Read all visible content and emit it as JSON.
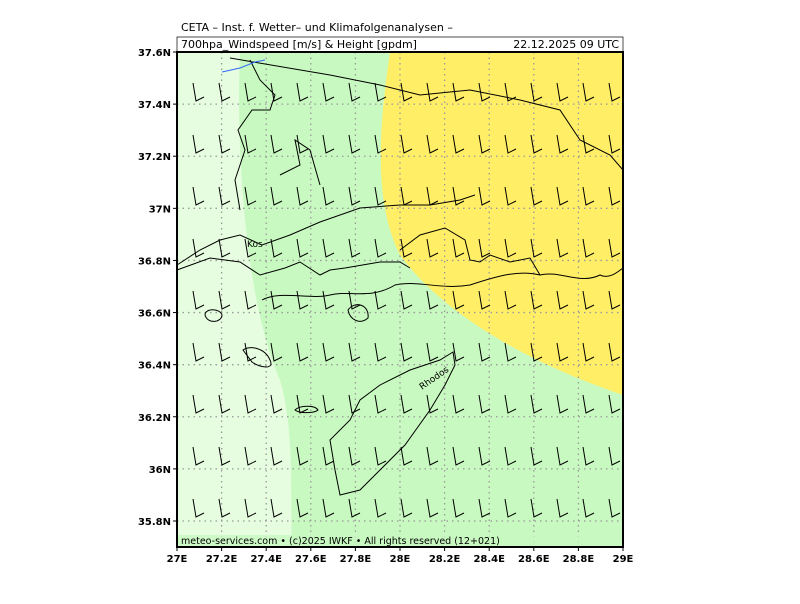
{
  "header": {
    "title": "CETA – Inst. f. Wetter– und Klimafolgenanalysen –",
    "product": "700hpa_Windspeed [m/s] & Height [gpdm]",
    "valid_time": "22.12.2025 09 UTC"
  },
  "axes": {
    "lat_labels": [
      "37.6N",
      "37.4N",
      "37.2N",
      "37N",
      "36.8N",
      "36.6N",
      "36.4N",
      "36.2N",
      "36N",
      "35.8N"
    ],
    "lon_labels": [
      "27E",
      "27.2E",
      "27.4E",
      "27.6E",
      "27.8E",
      "28E",
      "28.2E",
      "28.4E",
      "28.6E",
      "28.8E",
      "29E"
    ]
  },
  "places": [
    "Kos",
    "Rhodos"
  ],
  "footer": "meteo-services.com • (c)2025 IWKF • All rights reserved (12+021)"
}
